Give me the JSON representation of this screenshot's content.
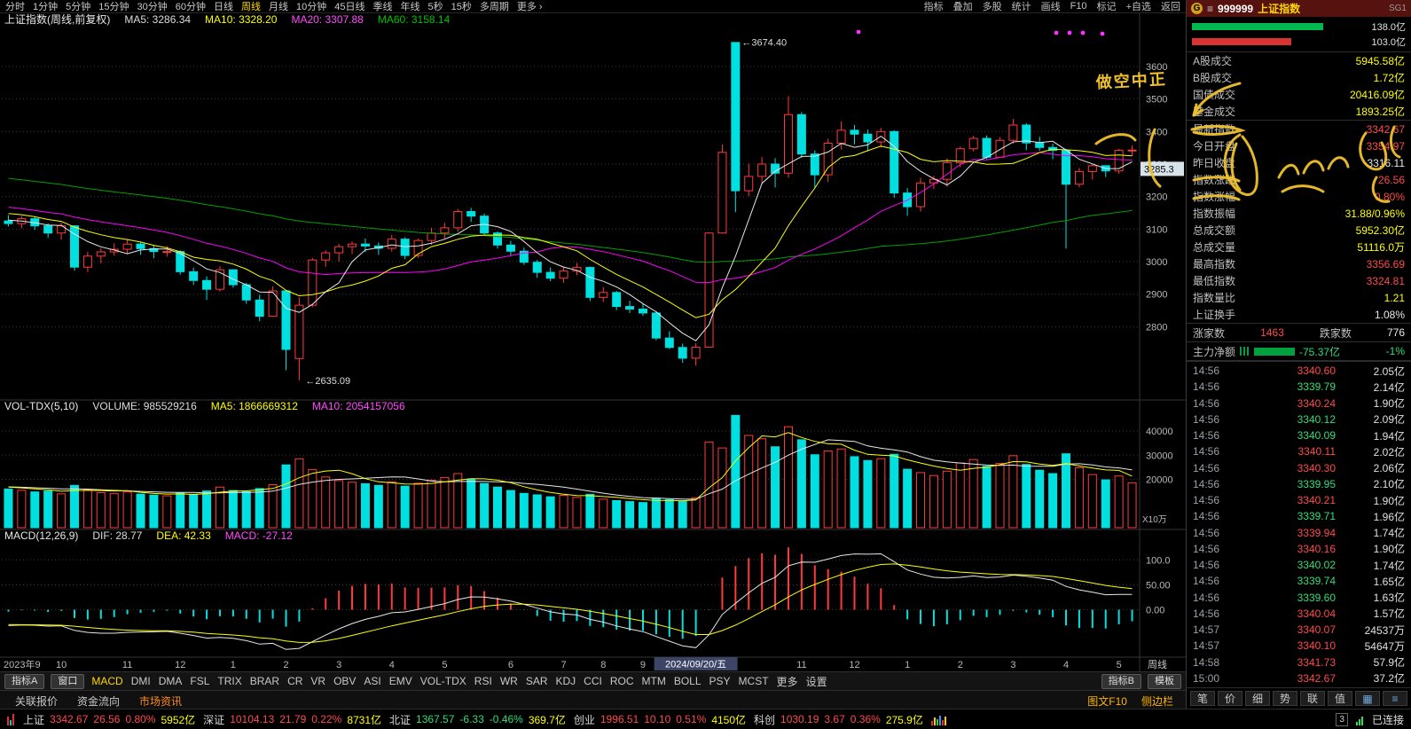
{
  "topbar": {
    "left": [
      {
        "label": "分时"
      },
      {
        "label": "1分钟"
      },
      {
        "label": "5分钟"
      },
      {
        "label": "15分钟"
      },
      {
        "label": "30分钟"
      },
      {
        "label": "60分钟"
      },
      {
        "label": "日线"
      },
      {
        "label": "周线",
        "active": true
      },
      {
        "label": "月线"
      },
      {
        "label": "10分钟"
      },
      {
        "label": "45日线"
      },
      {
        "label": "季线"
      },
      {
        "label": "年线"
      },
      {
        "label": "5秒"
      },
      {
        "label": "15秒"
      },
      {
        "label": "多周期"
      },
      {
        "label": "更多 ›"
      }
    ],
    "right": [
      "指标",
      "叠加",
      "多股",
      "统计",
      "画线",
      "F10",
      "标记",
      "+自选",
      "返回"
    ]
  },
  "chart": {
    "title": "上证指数(周线,前复权)",
    "ma5_label": "MA5: 3286.34",
    "ma10_label": "MA10: 3328.20",
    "ma20_label": "MA20: 3307.88",
    "ma60_label": "MA60: 3158.14",
    "current_price_label": "3285.3",
    "high_annotation": "3674.40",
    "low_annotation": "2635.09",
    "vol_name": "VOL-TDX(5,10)",
    "volume_label": "VOLUME: 985529216",
    "vol_ma5_label": "MA5: 1866669312",
    "vol_ma10_label": "MA10: 2054157056",
    "vol_unit": "X10万",
    "macd_name": "MACD(12,26,9)",
    "macd_dif_label": "DIF: 28.77",
    "macd_dea_label": "DEA: 42.33",
    "macd_val_label": "MACD: -27.12",
    "period_label": "周线",
    "date_box": "2024/09/20/五"
  },
  "chart_data": {
    "type": "candlestick",
    "period": "weekly",
    "title": "上证指数(周线,前复权)",
    "price_range": [
      2580,
      3720
    ],
    "price_gridlines": [
      2800,
      2900,
      3000,
      3100,
      3200,
      3300,
      3400,
      3500,
      3600
    ],
    "vol_max": 47000,
    "vol_gridlines": [
      20000,
      30000,
      40000
    ],
    "macd_gridlines": [
      0,
      50,
      100
    ],
    "date_box_index": 52,
    "x_labels": [
      {
        "t": "2023年9",
        "i": 0
      },
      {
        "t": "10",
        "i": 4
      },
      {
        "t": "11",
        "i": 9
      },
      {
        "t": "12",
        "i": 13
      },
      {
        "t": "1",
        "i": 17
      },
      {
        "t": "2",
        "i": 21
      },
      {
        "t": "3",
        "i": 25
      },
      {
        "t": "4",
        "i": 29
      },
      {
        "t": "5",
        "i": 33
      },
      {
        "t": "6",
        "i": 38
      },
      {
        "t": "7",
        "i": 42
      },
      {
        "t": "8",
        "i": 45
      },
      {
        "t": "9",
        "i": 48
      },
      {
        "t": "11",
        "i": 60
      },
      {
        "t": "12",
        "i": 64
      },
      {
        "t": "1",
        "i": 68
      },
      {
        "t": "2",
        "i": 72
      },
      {
        "t": "3",
        "i": 76
      },
      {
        "t": "4",
        "i": 80
      },
      {
        "t": "5",
        "i": 84
      }
    ],
    "ohlc": [
      [
        3125,
        3143,
        3108,
        3117
      ],
      [
        3117,
        3140,
        3102,
        3132
      ],
      [
        3132,
        3139,
        3098,
        3110
      ],
      [
        3110,
        3118,
        3073,
        3088
      ],
      [
        3088,
        3120,
        3067,
        3110
      ],
      [
        3110,
        3112,
        2972,
        2983
      ],
      [
        2983,
        3030,
        2968,
        3017
      ],
      [
        3017,
        3041,
        2995,
        3030
      ],
      [
        3030,
        3056,
        3018,
        3038
      ],
      [
        3038,
        3068,
        3023,
        3054
      ],
      [
        3054,
        3059,
        3021,
        3040
      ],
      [
        3040,
        3052,
        3010,
        3031
      ],
      [
        3031,
        3048,
        3015,
        3031
      ],
      [
        3031,
        3035,
        2960,
        2969
      ],
      [
        2969,
        2982,
        2928,
        2942
      ],
      [
        2942,
        2955,
        2882,
        2915
      ],
      [
        2915,
        2986,
        2908,
        2975
      ],
      [
        2975,
        2976,
        2920,
        2929
      ],
      [
        2929,
        2935,
        2870,
        2882
      ],
      [
        2882,
        2898,
        2817,
        2832
      ],
      [
        2832,
        2924,
        2830,
        2910
      ],
      [
        2910,
        2912,
        2666,
        2730
      ],
      [
        2702,
        2890,
        2635,
        2866
      ],
      [
        2866,
        3011,
        2860,
        3005
      ],
      [
        3005,
        3035,
        2984,
        3027
      ],
      [
        3027,
        3055,
        3000,
        3046
      ],
      [
        3046,
        3062,
        3023,
        3054
      ],
      [
        3054,
        3071,
        3029,
        3048
      ],
      [
        3048,
        3059,
        3021,
        3041
      ],
      [
        3041,
        3082,
        3031,
        3069
      ],
      [
        3069,
        3075,
        3007,
        3019
      ],
      [
        3019,
        3071,
        3012,
        3065
      ],
      [
        3065,
        3104,
        3052,
        3088
      ],
      [
        3088,
        3119,
        3071,
        3104
      ],
      [
        3104,
        3162,
        3092,
        3154
      ],
      [
        3154,
        3165,
        3122,
        3140
      ],
      [
        3140,
        3148,
        3080,
        3088
      ],
      [
        3088,
        3093,
        3040,
        3051
      ],
      [
        3051,
        3064,
        3018,
        3032
      ],
      [
        3032,
        3043,
        2990,
        2998
      ],
      [
        2998,
        3005,
        2950,
        2967
      ],
      [
        2967,
        2982,
        2940,
        2949
      ],
      [
        2949,
        2985,
        2935,
        2971
      ],
      [
        2971,
        2996,
        2958,
        2982
      ],
      [
        2982,
        2985,
        2879,
        2890
      ],
      [
        2890,
        2922,
        2876,
        2905
      ],
      [
        2905,
        2910,
        2851,
        2862
      ],
      [
        2862,
        2880,
        2842,
        2854
      ],
      [
        2854,
        2872,
        2833,
        2842
      ],
      [
        2842,
        2848,
        2758,
        2765
      ],
      [
        2765,
        2786,
        2731,
        2736
      ],
      [
        2736,
        2748,
        2689,
        2703
      ],
      [
        2703,
        2749,
        2680,
        2737
      ],
      [
        2737,
        3090,
        2736,
        3088
      ],
      [
        3088,
        3360,
        3086,
        3336
      ],
      [
        3674,
        3674,
        3152,
        3218
      ],
      [
        3218,
        3301,
        3201,
        3262
      ],
      [
        3262,
        3322,
        3237,
        3300
      ],
      [
        3300,
        3318,
        3228,
        3272
      ],
      [
        3272,
        3509,
        3258,
        3452
      ],
      [
        3452,
        3460,
        3319,
        3331
      ],
      [
        3331,
        3342,
        3227,
        3267
      ],
      [
        3267,
        3378,
        3245,
        3364
      ],
      [
        3364,
        3431,
        3345,
        3404
      ],
      [
        3404,
        3420,
        3361,
        3392
      ],
      [
        3392,
        3406,
        3339,
        3368
      ],
      [
        3368,
        3411,
        3351,
        3400
      ],
      [
        3400,
        3404,
        3196,
        3211
      ],
      [
        3211,
        3226,
        3141,
        3169
      ],
      [
        3169,
        3258,
        3154,
        3242
      ],
      [
        3242,
        3264,
        3223,
        3253
      ],
      [
        3253,
        3317,
        3230,
        3304
      ],
      [
        3304,
        3354,
        3291,
        3347
      ],
      [
        3347,
        3387,
        3339,
        3379
      ],
      [
        3379,
        3388,
        3315,
        3321
      ],
      [
        3321,
        3382,
        3319,
        3373
      ],
      [
        3373,
        3439,
        3363,
        3420
      ],
      [
        3420,
        3426,
        3343,
        3365
      ],
      [
        3365,
        3384,
        3341,
        3351
      ],
      [
        3351,
        3363,
        3315,
        3342
      ],
      [
        3342,
        3347,
        3040,
        3238
      ],
      [
        3238,
        3288,
        3229,
        3277
      ],
      [
        3277,
        3299,
        3252,
        3295
      ],
      [
        3295,
        3296,
        3260,
        3279
      ],
      [
        3279,
        3347,
        3270,
        3342
      ],
      [
        3342,
        3357,
        3325,
        3343
      ]
    ],
    "volumes": [
      16000,
      15500,
      14800,
      15200,
      14000,
      17500,
      15800,
      14500,
      14200,
      14800,
      13900,
      13500,
      13200,
      14500,
      13800,
      15200,
      16800,
      15400,
      14900,
      16200,
      17800,
      26000,
      28500,
      24000,
      21000,
      19500,
      18800,
      18200,
      17500,
      18900,
      17200,
      18400,
      19600,
      20800,
      22400,
      20100,
      18300,
      16800,
      15400,
      14200,
      13600,
      12800,
      13400,
      12600,
      13800,
      11800,
      11200,
      10800,
      10400,
      12200,
      11600,
      10900,
      12400,
      35500,
      33000,
      46500,
      38200,
      36800,
      33500,
      41800,
      36400,
      30200,
      31800,
      32600,
      29400,
      27800,
      28600,
      30400,
      24200,
      22800,
      21600,
      23400,
      26800,
      28200,
      25400,
      26600,
      29800,
      26200,
      23800,
      22400,
      30600,
      24800,
      22000,
      19800,
      21400,
      18600
    ]
  },
  "annotation": {
    "text": "做空中正"
  },
  "indicator_bar": {
    "left_buttons": [
      "指标A",
      "窗口"
    ],
    "items": [
      "MACD",
      "DMI",
      "DMA",
      "FSL",
      "TRIX",
      "BRAR",
      "CR",
      "VR",
      "OBV",
      "ASI",
      "EMV",
      "VOL-TDX",
      "RSI",
      "WR",
      "SAR",
      "KDJ",
      "CCI",
      "ROC",
      "MTM",
      "BOLL",
      "PSY",
      "MCST",
      "更多",
      "设置"
    ],
    "active": "MACD",
    "right_buttons": [
      "指标B",
      "模板"
    ]
  },
  "subtab_bar": {
    "items": [
      "关联报价",
      "资金流向",
      "市场资讯"
    ],
    "right_items": [
      "图文F10",
      "侧边栏"
    ]
  },
  "status_bar": {
    "indices": [
      {
        "name": "上证",
        "value": "3342.67",
        "chg": "26.56",
        "pct": "0.80%",
        "amt": "5952亿",
        "dir": "up"
      },
      {
        "name": "深证",
        "value": "10104.13",
        "chg": "21.79",
        "pct": "0.22%",
        "amt": "8731亿",
        "dir": "up"
      },
      {
        "name": "北证",
        "value": "1367.57",
        "chg": "-6.33",
        "pct": "-0.46%",
        "amt": "369.7亿",
        "dir": "down"
      },
      {
        "name": "创业",
        "value": "1996.51",
        "chg": "10.10",
        "pct": "0.51%",
        "amt": "4150亿",
        "dir": "up"
      },
      {
        "name": "科创",
        "value": "1030.19",
        "chg": "3.67",
        "pct": "0.36%",
        "amt": "275.9亿",
        "dir": "up"
      }
    ],
    "badge": "3",
    "connection": "已连接"
  },
  "right_panel": {
    "header": {
      "badge": "G",
      "menu": "≡",
      "code": "999999",
      "name": "上证指数",
      "tag": "SG1"
    },
    "gauges": [
      {
        "value": "138.0亿",
        "color": "#00b84e",
        "width": 148
      },
      {
        "value": "103.0亿",
        "color": "#d93232",
        "width": 112
      }
    ],
    "stats": [
      {
        "label": "A股成交",
        "value": "5945.58亿",
        "cls": "v-yellow"
      },
      {
        "label": "B股成交",
        "value": "1.72亿",
        "cls": "v-yellow"
      },
      {
        "label": "国债成交",
        "value": "20416.09亿",
        "cls": "v-yellow"
      },
      {
        "label": "基金成交",
        "value": "1893.25亿",
        "cls": "v-yellow",
        "divider": true
      },
      {
        "label": "最新指数",
        "value": "3342.67",
        "cls": "v-red"
      },
      {
        "label": "今日开盘",
        "value": "3354.97",
        "cls": "v-red"
      },
      {
        "label": "昨日收盘",
        "value": "3316.11",
        "cls": "v-white"
      },
      {
        "label": "指数涨跌",
        "value": "26.56",
        "cls": "v-red"
      },
      {
        "label": "指数涨幅",
        "value": "0.80%",
        "cls": "v-red"
      },
      {
        "label": "指数振幅",
        "value": "31.88/0.96%",
        "cls": "v-yellow"
      },
      {
        "label": "总成交额",
        "value": "5952.30亿",
        "cls": "v-yellow"
      },
      {
        "label": "总成交量",
        "value": "51116.0万",
        "cls": "v-yellow"
      },
      {
        "label": "最高指数",
        "value": "3356.69",
        "cls": "v-red"
      },
      {
        "label": "最低指数",
        "value": "3324.81",
        "cls": "v-red"
      },
      {
        "label": "指数量比",
        "value": "1.21",
        "cls": "v-yellow"
      },
      {
        "label": "上证换手",
        "value": "1.08%",
        "cls": "v-white",
        "divider": true
      }
    ],
    "breadth": {
      "up_label": "涨家数",
      "up": "1463",
      "down_label": "跌家数",
      "down": "776"
    },
    "main_net": {
      "label": "主力净额",
      "value": "-75.37亿",
      "pct": "-1%"
    },
    "ticks": [
      {
        "t": "14:56",
        "p": "3340.60",
        "d": "up",
        "a": "2.05亿"
      },
      {
        "t": "14:56",
        "p": "3339.79",
        "d": "down",
        "a": "2.14亿"
      },
      {
        "t": "14:56",
        "p": "3340.24",
        "d": "up",
        "a": "1.90亿"
      },
      {
        "t": "14:56",
        "p": "3340.12",
        "d": "down",
        "a": "2.09亿"
      },
      {
        "t": "14:56",
        "p": "3340.09",
        "d": "down",
        "a": "1.94亿"
      },
      {
        "t": "14:56",
        "p": "3340.11",
        "d": "up",
        "a": "2.02亿"
      },
      {
        "t": "14:56",
        "p": "3340.30",
        "d": "up",
        "a": "2.06亿"
      },
      {
        "t": "14:56",
        "p": "3339.95",
        "d": "down",
        "a": "2.10亿"
      },
      {
        "t": "14:56",
        "p": "3340.21",
        "d": "up",
        "a": "1.90亿"
      },
      {
        "t": "14:56",
        "p": "3339.71",
        "d": "down",
        "a": "1.96亿"
      },
      {
        "t": "14:56",
        "p": "3339.94",
        "d": "up",
        "a": "1.74亿"
      },
      {
        "t": "14:56",
        "p": "3340.16",
        "d": "up",
        "a": "1.90亿"
      },
      {
        "t": "14:56",
        "p": "3340.02",
        "d": "down",
        "a": "1.74亿"
      },
      {
        "t": "14:56",
        "p": "3339.74",
        "d": "down",
        "a": "1.65亿"
      },
      {
        "t": "14:56",
        "p": "3339.60",
        "d": "down",
        "a": "1.63亿"
      },
      {
        "t": "14:56",
        "p": "3340.04",
        "d": "up",
        "a": "1.57亿"
      },
      {
        "t": "14:57",
        "p": "3340.07",
        "d": "up",
        "a": "24537万"
      },
      {
        "t": "14:57",
        "p": "3340.10",
        "d": "up",
        "a": "54647万"
      },
      {
        "t": "14:58",
        "p": "3341.73",
        "d": "up",
        "a": "57.9亿",
        "acls": "v-yellow"
      },
      {
        "t": "15:00",
        "p": "3342.67",
        "d": "up",
        "a": "37.2亿",
        "acls": "v-yellow"
      }
    ],
    "bottom_tabs": [
      "笔",
      "价",
      "细",
      "势",
      "联",
      "值"
    ]
  },
  "colors": {
    "up": "#ff3a3a",
    "down": "#00e0e0",
    "annotation": "#f0c12a",
    "ma5": "#e8e8e8",
    "ma10": "#ffff00",
    "ma20": "#ff00ff",
    "ma60": "#00a000"
  }
}
